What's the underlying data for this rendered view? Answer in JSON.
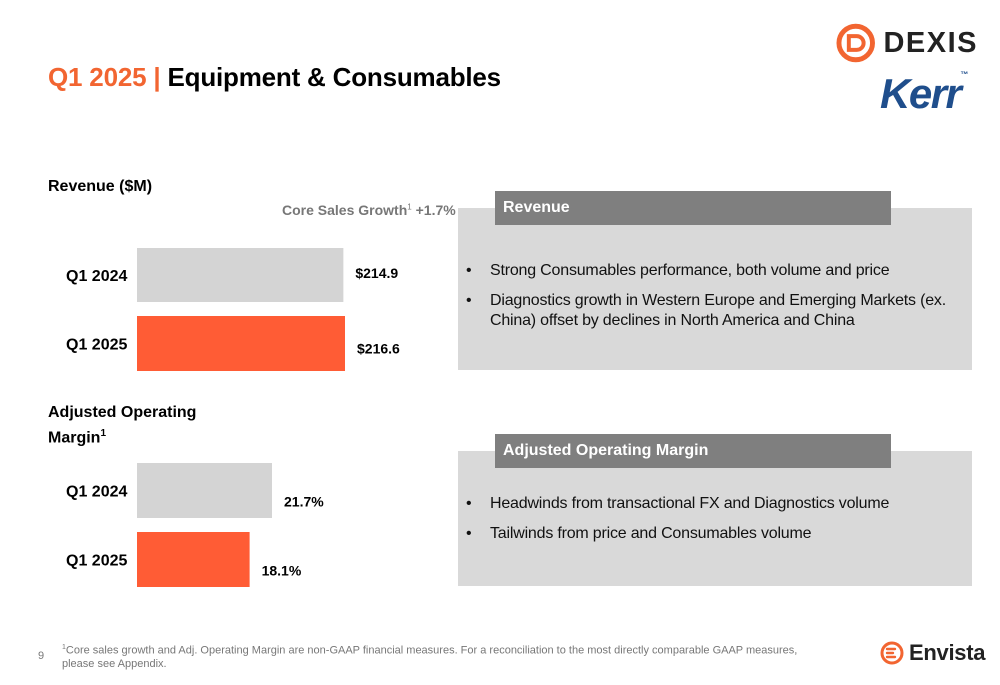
{
  "header": {
    "title_prefix": "Q1 2025",
    "title_separator": "|",
    "title_main": "Equipment & Consumables"
  },
  "logos": {
    "dexis_label": "DEXIS",
    "kerr_label": "Kerr",
    "kerr_mark": "™",
    "envista_label": "Envista"
  },
  "revenue_section": {
    "label": "Revenue ($M)",
    "core_growth_text": "Core Sales Growth",
    "core_growth_sup": "1",
    "core_growth_value": "+1.7%"
  },
  "margin_section": {
    "label_line1": "Adjusted Operating",
    "label_line2": "Margin",
    "label_sup": "1"
  },
  "chart_data": [
    {
      "type": "bar",
      "orientation": "horizontal",
      "title": "Revenue ($M)",
      "categories": [
        "Q1 2024",
        "Q1 2025"
      ],
      "values": [
        214.9,
        216.6
      ],
      "value_labels": [
        "$214.9",
        "$216.6"
      ],
      "colors": [
        "#d4d4d4",
        "#ff5c35"
      ],
      "annotation": "Core Sales Growth1 +1.7%"
    },
    {
      "type": "bar",
      "orientation": "horizontal",
      "title": "Adjusted Operating Margin1",
      "categories": [
        "Q1 2024",
        "Q1 2025"
      ],
      "values": [
        21.7,
        18.1
      ],
      "value_labels": [
        "21.7%",
        "18.1%"
      ],
      "colors": [
        "#d4d4d4",
        "#ff5c35"
      ]
    }
  ],
  "revenue_panel": {
    "header": "Revenue",
    "bullets": [
      "Strong Consumables performance, both volume and price",
      "Diagnostics growth in Western Europe and Emerging Markets (ex. China) offset by declines in North America and China"
    ]
  },
  "margin_panel": {
    "header": "Adjusted Operating Margin",
    "bullets": [
      "Headwinds from transactional FX and Diagnostics volume",
      "Tailwinds from price and Consumables volume"
    ]
  },
  "footer": {
    "page_number": "9",
    "footnote_sup": "1",
    "footnote_text": "Core sales growth and Adj. Operating Margin are non-GAAP financial measures. For a reconciliation to the most directly comparable GAAP measures, please see Appendix."
  },
  "colors": {
    "accent": "#f26531",
    "bar_prior": "#d4d4d4",
    "bar_current": "#ff5c35",
    "panel_bg": "#d9d9d9",
    "panel_header_bg": "#7f7f7f",
    "kerr_blue": "#1f4e8c"
  }
}
